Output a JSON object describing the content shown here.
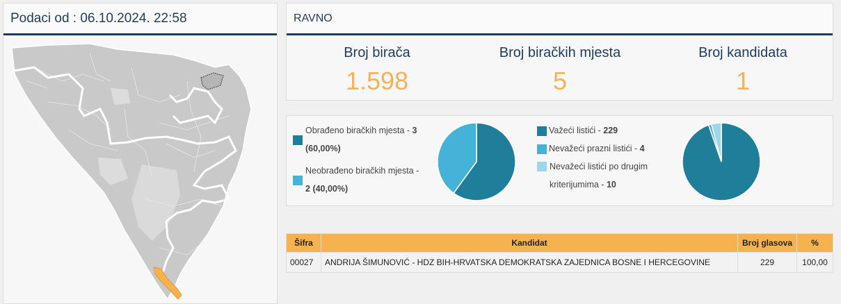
{
  "left": {
    "title": "Podaci od : 06.10.2024. 22:58"
  },
  "header": {
    "title": "RAVNO"
  },
  "stats": [
    {
      "label": "Broj birača",
      "value": "1.598"
    },
    {
      "label": "Broj biračkih mjesta",
      "value": "5"
    },
    {
      "label": "Broj kandidata",
      "value": "1"
    }
  ],
  "processed": {
    "items": [
      {
        "text": "Obrađeno biračkih mjesta - ",
        "num": "3",
        "pct": "(60,00%)",
        "color": "#1f7e9a"
      },
      {
        "text": "Neobrađeno biračkih mjesta - ",
        "num": "2",
        "pct": "(40,00%)",
        "color": "#45b3d8"
      }
    ]
  },
  "ballots": {
    "items": [
      {
        "text": "Važeći listići - ",
        "num": "229",
        "color": "#1f7e9a"
      },
      {
        "text": "Nevažeći prazni listići - ",
        "num": "4",
        "color": "#45b3d8"
      },
      {
        "text1": "Nevažeći listići po drugim",
        "text2": "kriterijumima - ",
        "num": "10",
        "color": "#9fd7ea"
      }
    ]
  },
  "table": {
    "headers": {
      "code": "Šifra",
      "candidate": "Kandidat",
      "votes": "Broj glasova",
      "pct": "%"
    },
    "rows": [
      {
        "code": "00027",
        "candidate": "ANDRIJA ŠIMUNOVIĆ - HDZ BIH-HRVATSKA DEMOKRATSKA ZAJEDNICA BOSNE I HERCEGOVINE",
        "votes": "229",
        "pct": "100,00"
      }
    ]
  }
}
